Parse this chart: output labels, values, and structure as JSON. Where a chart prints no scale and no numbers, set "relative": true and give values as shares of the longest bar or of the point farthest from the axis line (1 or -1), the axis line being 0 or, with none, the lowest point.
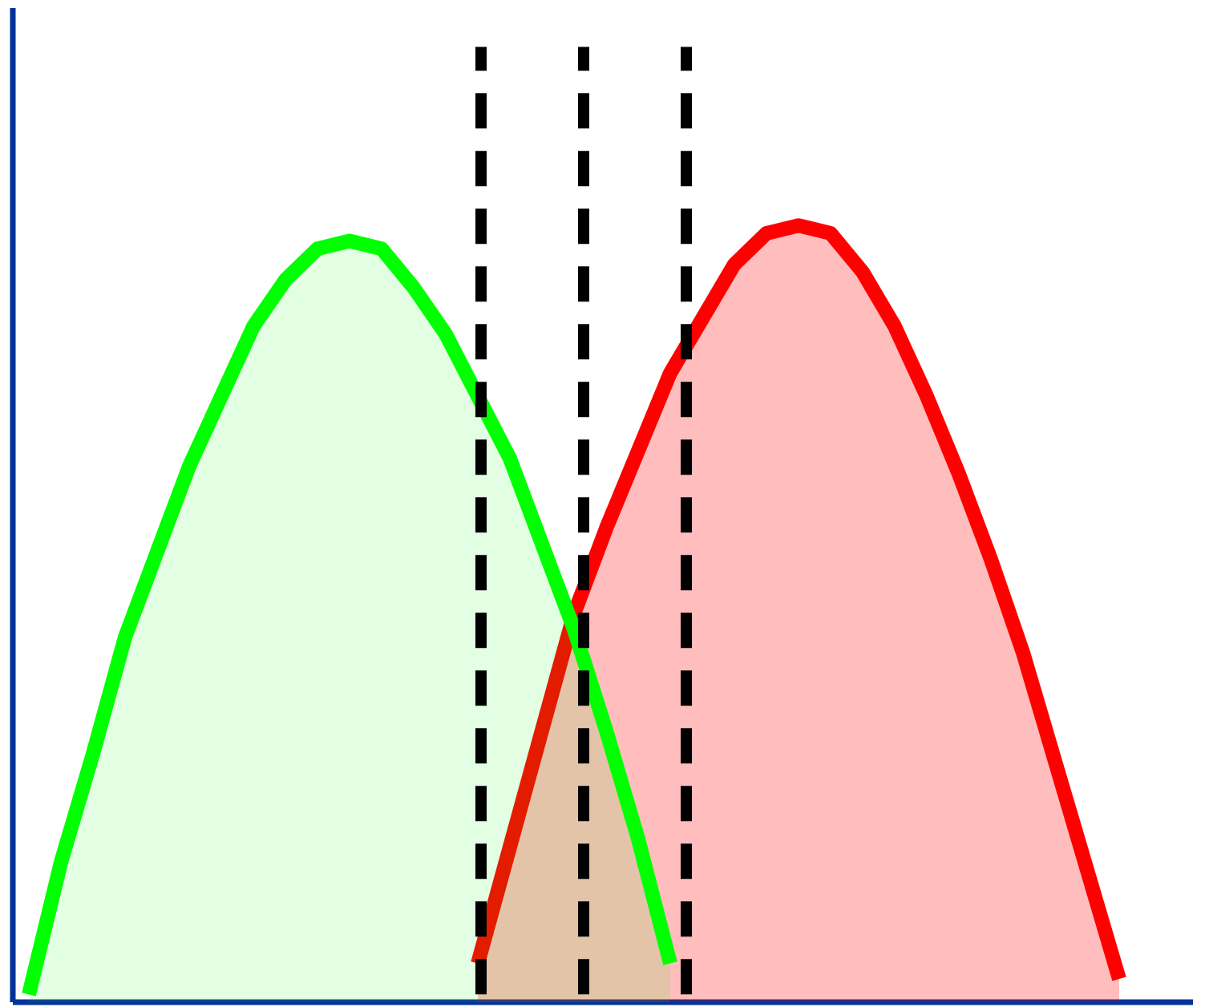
{
  "chart_data": {
    "type": "area",
    "relative": true,
    "categories": [
      null,
      null,
      null,
      null,
      null,
      null,
      null,
      null,
      null,
      null,
      null,
      null,
      null,
      null,
      null,
      null,
      null,
      null,
      null,
      null,
      null,
      null,
      null,
      null,
      null,
      null,
      null,
      null,
      null,
      null,
      null,
      null,
      null,
      null,
      null
    ],
    "series": [
      {
        "color": "#00ff00",
        "values": [
          0.01,
          0.18,
          0.32,
          0.47,
          0.58,
          0.69,
          0.78,
          0.87,
          0.93,
          0.97,
          0.98,
          0.97,
          0.92,
          0.86,
          0.78,
          0.7,
          0.59,
          0.48,
          0.35,
          0.21,
          0.05,
          null,
          null,
          null,
          null,
          null,
          null,
          null,
          null,
          null,
          null,
          null,
          null,
          null,
          null
        ]
      },
      {
        "color": "#ff0000",
        "values": [
          null,
          null,
          null,
          null,
          null,
          null,
          null,
          null,
          null,
          null,
          null,
          null,
          null,
          null,
          0.05,
          0.2,
          0.35,
          0.5,
          0.61,
          0.71,
          0.81,
          0.88,
          0.95,
          0.99,
          1.0,
          0.99,
          0.94,
          0.87,
          0.78,
          0.68,
          0.57,
          0.45,
          0.31,
          0.17,
          0.03
        ]
      }
    ]
  }
}
